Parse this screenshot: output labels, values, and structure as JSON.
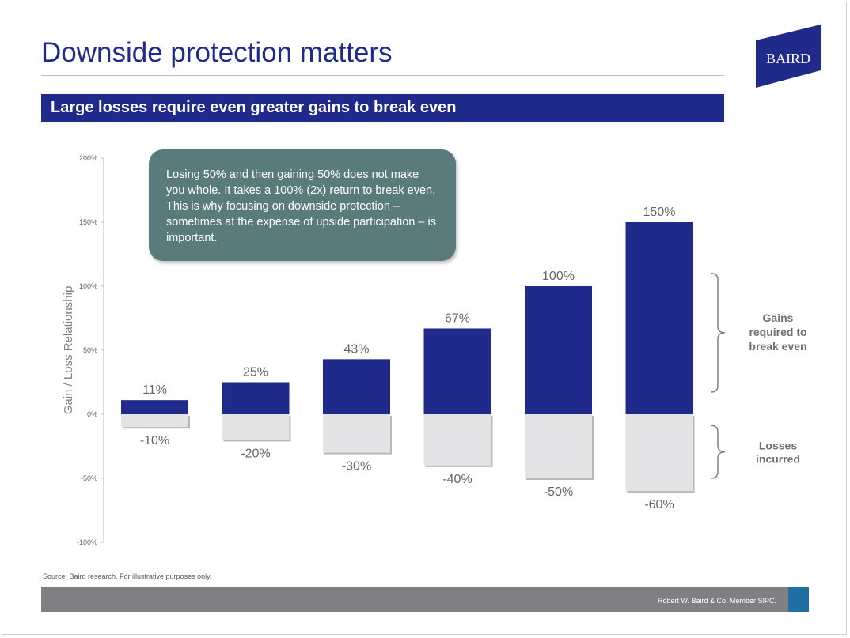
{
  "title": "Downside protection matters",
  "subtitle": "Large losses require even greater gains to break even",
  "logo_text": "BAIRD",
  "callout_text": "Losing 50% and then gaining 50% does not make you whole.  It takes a 100% (2x) return to break even. This is why focusing on downside protection – sometimes at the expense of upside participation – is important.",
  "source": "Source: Baird research. For illustrative purposes only.",
  "footer": "Robert W. Baird & Co. Member SIPC.",
  "colors": {
    "brand_navy": "#1f2a8a",
    "gain_bar": "#1f2a8a",
    "loss_bar": "#e4e4e6",
    "callout": "#5a7b7b",
    "footer_bar": "#808083",
    "footer_accent": "#1f6fa3"
  },
  "chart_data": {
    "type": "bar",
    "ylabel": "Gain / Loss Relationship",
    "ylim": [
      -100,
      200
    ],
    "yticks": [
      {
        "value": 200,
        "label": "200%"
      },
      {
        "value": 150,
        "label": "150%"
      },
      {
        "value": 100,
        "label": "100%"
      },
      {
        "value": 50,
        "label": "50%"
      },
      {
        "value": 0,
        "label": "0%"
      },
      {
        "value": -50,
        "label": "-50%"
      },
      {
        "value": -100,
        "label": "-100%"
      }
    ],
    "grid": false,
    "series": [
      {
        "name": "Gains required to break even",
        "values": [
          11,
          25,
          43,
          67,
          100,
          150
        ],
        "labels": [
          "11%",
          "25%",
          "43%",
          "67%",
          "100%",
          "150%"
        ]
      },
      {
        "name": "Losses incurred",
        "values": [
          -10,
          -20,
          -30,
          -40,
          -50,
          -60
        ],
        "labels": [
          "-10%",
          "-20%",
          "-30%",
          "-40%",
          "-50%",
          "-60%"
        ]
      }
    ],
    "annotations": [
      {
        "text": "Gains required to break even",
        "lines": [
          "Gains",
          "required to",
          "break even"
        ],
        "spans": [
          0,
          110
        ]
      },
      {
        "text": "Losses incurred",
        "lines": [
          "Losses",
          "incurred"
        ],
        "spans": [
          -10,
          -50
        ]
      }
    ]
  }
}
